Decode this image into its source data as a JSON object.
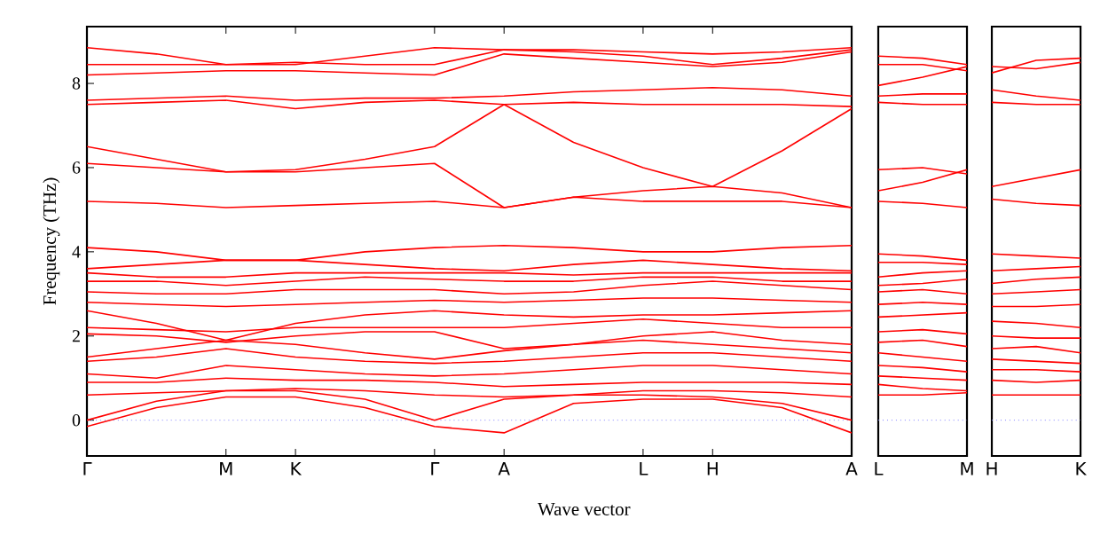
{
  "chart_data": [
    {
      "type": "line",
      "xlabel": "Wave vector",
      "ylabel": "Frequency (THz)",
      "ylim": [
        -0.85,
        9.35
      ],
      "categories": [
        "Γ",
        null,
        "M",
        "K",
        null,
        "Γ",
        "A",
        null,
        "L",
        "H",
        null,
        "A"
      ],
      "yticks": [
        0,
        2,
        4,
        6,
        8
      ],
      "marker": "none",
      "line_style": "solid",
      "ref_lines": [
        {
          "axis": "y",
          "value": 0,
          "color": "#8080ff",
          "line_style": "dotted"
        }
      ],
      "series": [
        {
          "color": "#ff0000",
          "values": [
            -0.15,
            0.3,
            0.55,
            0.55,
            0.3,
            -0.15,
            -0.3,
            0.4,
            0.5,
            0.5,
            0.3,
            -0.3
          ]
        },
        {
          "color": "#ff0000",
          "values": [
            0.0,
            0.45,
            0.7,
            0.7,
            0.5,
            0.0,
            0.5,
            0.6,
            0.6,
            0.55,
            0.4,
            0.0
          ]
        },
        {
          "color": "#ff0000",
          "values": [
            0.6,
            0.65,
            0.7,
            0.75,
            0.7,
            0.6,
            0.55,
            0.6,
            0.7,
            0.7,
            0.65,
            0.55
          ]
        },
        {
          "color": "#ff0000",
          "values": [
            0.9,
            0.9,
            1.0,
            0.95,
            0.95,
            0.9,
            0.8,
            0.85,
            0.9,
            0.9,
            0.9,
            0.85
          ]
        },
        {
          "color": "#ff0000",
          "values": [
            1.1,
            1.0,
            1.3,
            1.2,
            1.1,
            1.05,
            1.1,
            1.2,
            1.3,
            1.3,
            1.2,
            1.1
          ]
        },
        {
          "color": "#ff0000",
          "values": [
            1.4,
            1.5,
            1.7,
            1.5,
            1.4,
            1.35,
            1.4,
            1.5,
            1.6,
            1.6,
            1.5,
            1.4
          ]
        },
        {
          "color": "#ff0000",
          "values": [
            1.5,
            1.7,
            1.9,
            1.8,
            1.6,
            1.45,
            1.65,
            1.8,
            1.9,
            1.8,
            1.7,
            1.6
          ]
        },
        {
          "color": "#ff0000",
          "values": [
            2.05,
            2.0,
            1.85,
            2.0,
            2.1,
            2.1,
            1.7,
            1.8,
            2.0,
            2.1,
            1.9,
            1.8
          ]
        },
        {
          "color": "#ff0000",
          "values": [
            2.2,
            2.15,
            2.1,
            2.2,
            2.2,
            2.2,
            2.2,
            2.3,
            2.4,
            2.3,
            2.2,
            2.2
          ]
        },
        {
          "color": "#ff0000",
          "values": [
            2.6,
            2.3,
            1.9,
            2.3,
            2.5,
            2.6,
            2.5,
            2.45,
            2.5,
            2.5,
            2.55,
            2.6
          ]
        },
        {
          "color": "#ff0000",
          "values": [
            2.8,
            2.75,
            2.7,
            2.75,
            2.8,
            2.85,
            2.8,
            2.85,
            2.9,
            2.9,
            2.85,
            2.8
          ]
        },
        {
          "color": "#ff0000",
          "values": [
            3.05,
            3.0,
            3.0,
            3.1,
            3.1,
            3.1,
            3.0,
            3.05,
            3.2,
            3.3,
            3.2,
            3.1
          ]
        },
        {
          "color": "#ff0000",
          "values": [
            3.3,
            3.3,
            3.2,
            3.3,
            3.4,
            3.35,
            3.3,
            3.3,
            3.4,
            3.4,
            3.3,
            3.3
          ]
        },
        {
          "color": "#ff0000",
          "values": [
            3.5,
            3.4,
            3.4,
            3.5,
            3.5,
            3.5,
            3.5,
            3.45,
            3.5,
            3.5,
            3.5,
            3.5
          ]
        },
        {
          "color": "#ff0000",
          "values": [
            3.6,
            3.7,
            3.8,
            3.8,
            3.7,
            3.6,
            3.55,
            3.7,
            3.8,
            3.7,
            3.6,
            3.55
          ]
        },
        {
          "color": "#ff0000",
          "values": [
            4.1,
            4.0,
            3.8,
            3.8,
            4.0,
            4.1,
            4.15,
            4.1,
            4.0,
            4.0,
            4.1,
            4.15
          ]
        },
        {
          "color": "#ff0000",
          "values": [
            5.2,
            5.15,
            5.05,
            5.1,
            5.15,
            5.2,
            5.05,
            5.3,
            5.2,
            5.2,
            5.2,
            5.05
          ]
        },
        {
          "color": "#ff0000",
          "values": [
            6.1,
            6.0,
            5.9,
            5.9,
            6.0,
            6.1,
            5.05,
            5.3,
            5.45,
            5.55,
            5.4,
            5.05
          ]
        },
        {
          "color": "#ff0000",
          "values": [
            6.5,
            6.2,
            5.9,
            5.95,
            6.2,
            6.5,
            7.5,
            6.6,
            6.0,
            5.55,
            6.4,
            7.4
          ]
        },
        {
          "color": "#ff0000",
          "values": [
            7.5,
            7.55,
            7.6,
            7.4,
            7.55,
            7.6,
            7.5,
            7.55,
            7.5,
            7.5,
            7.5,
            7.45
          ]
        },
        {
          "color": "#ff0000",
          "values": [
            7.6,
            7.65,
            7.7,
            7.6,
            7.65,
            7.65,
            7.7,
            7.8,
            7.85,
            7.9,
            7.85,
            7.7
          ]
        },
        {
          "color": "#ff0000",
          "values": [
            8.2,
            8.25,
            8.3,
            8.3,
            8.25,
            8.2,
            8.7,
            8.6,
            8.5,
            8.4,
            8.5,
            8.75
          ]
        },
        {
          "color": "#ff0000",
          "values": [
            8.45,
            8.45,
            8.45,
            8.5,
            8.45,
            8.45,
            8.8,
            8.75,
            8.65,
            8.45,
            8.6,
            8.8
          ]
        },
        {
          "color": "#ff0000",
          "values": [
            8.85,
            8.7,
            8.45,
            8.45,
            8.65,
            8.85,
            8.8,
            8.8,
            8.75,
            8.7,
            8.75,
            8.85
          ]
        }
      ]
    },
    {
      "type": "line",
      "ylim": [
        -0.85,
        9.35
      ],
      "tick_labels": "x",
      "categories": [
        "L",
        null,
        "M"
      ],
      "marker": "none",
      "line_style": "solid",
      "ref_lines": [
        {
          "axis": "y",
          "value": 0,
          "color": "#8080ff",
          "line_style": "dotted"
        }
      ],
      "series": [
        {
          "color": "#ff0000",
          "values": [
            8.65,
            8.6,
            8.45
          ]
        },
        {
          "color": "#ff0000",
          "values": [
            8.45,
            8.45,
            8.3
          ]
        },
        {
          "color": "#ff0000",
          "values": [
            7.95,
            8.15,
            8.4
          ]
        },
        {
          "color": "#ff0000",
          "values": [
            7.7,
            7.75,
            7.75
          ]
        },
        {
          "color": "#ff0000",
          "values": [
            7.55,
            7.5,
            7.5
          ]
        },
        {
          "color": "#ff0000",
          "values": [
            5.95,
            6.0,
            5.85
          ]
        },
        {
          "color": "#ff0000",
          "values": [
            5.45,
            5.65,
            5.95
          ]
        },
        {
          "color": "#ff0000",
          "values": [
            5.2,
            5.15,
            5.05
          ]
        },
        {
          "color": "#ff0000",
          "values": [
            3.95,
            3.9,
            3.8
          ]
        },
        {
          "color": "#ff0000",
          "values": [
            3.75,
            3.75,
            3.7
          ]
        },
        {
          "color": "#ff0000",
          "values": [
            3.4,
            3.5,
            3.55
          ]
        },
        {
          "color": "#ff0000",
          "values": [
            3.2,
            3.25,
            3.35
          ]
        },
        {
          "color": "#ff0000",
          "values": [
            3.05,
            3.1,
            3.0
          ]
        },
        {
          "color": "#ff0000",
          "values": [
            2.75,
            2.8,
            2.75
          ]
        },
        {
          "color": "#ff0000",
          "values": [
            2.45,
            2.5,
            2.55
          ]
        },
        {
          "color": "#ff0000",
          "values": [
            2.1,
            2.15,
            2.05
          ]
        },
        {
          "color": "#ff0000",
          "values": [
            1.85,
            1.9,
            1.75
          ]
        },
        {
          "color": "#ff0000",
          "values": [
            1.6,
            1.5,
            1.4
          ]
        },
        {
          "color": "#ff0000",
          "values": [
            1.3,
            1.25,
            1.15
          ]
        },
        {
          "color": "#ff0000",
          "values": [
            1.05,
            1.0,
            0.95
          ]
        },
        {
          "color": "#ff0000",
          "values": [
            0.85,
            0.75,
            0.7
          ]
        },
        {
          "color": "#ff0000",
          "values": [
            0.6,
            0.6,
            0.65
          ]
        }
      ]
    },
    {
      "type": "line",
      "ylim": [
        -0.85,
        9.35
      ],
      "tick_labels": "x",
      "categories": [
        "H",
        null,
        "K"
      ],
      "marker": "none",
      "line_style": "solid",
      "ref_lines": [
        {
          "axis": "y",
          "value": 0,
          "color": "#8080ff",
          "line_style": "dotted"
        }
      ],
      "series": [
        {
          "color": "#ff0000",
          "values": [
            8.4,
            8.35,
            8.5
          ]
        },
        {
          "color": "#ff0000",
          "values": [
            8.25,
            8.55,
            8.6
          ]
        },
        {
          "color": "#ff0000",
          "values": [
            7.85,
            7.7,
            7.6
          ]
        },
        {
          "color": "#ff0000",
          "values": [
            7.55,
            7.5,
            7.5
          ]
        },
        {
          "color": "#ff0000",
          "values": [
            5.55,
            5.75,
            5.95
          ]
        },
        {
          "color": "#ff0000",
          "values": [
            5.25,
            5.15,
            5.1
          ]
        },
        {
          "color": "#ff0000",
          "values": [
            3.95,
            3.9,
            3.85
          ]
        },
        {
          "color": "#ff0000",
          "values": [
            3.55,
            3.6,
            3.65
          ]
        },
        {
          "color": "#ff0000",
          "values": [
            3.25,
            3.35,
            3.4
          ]
        },
        {
          "color": "#ff0000",
          "values": [
            3.0,
            3.05,
            3.1
          ]
        },
        {
          "color": "#ff0000",
          "values": [
            2.7,
            2.7,
            2.75
          ]
        },
        {
          "color": "#ff0000",
          "values": [
            2.35,
            2.3,
            2.2
          ]
        },
        {
          "color": "#ff0000",
          "values": [
            2.0,
            1.95,
            1.95
          ]
        },
        {
          "color": "#ff0000",
          "values": [
            1.7,
            1.75,
            1.6
          ]
        },
        {
          "color": "#ff0000",
          "values": [
            1.45,
            1.4,
            1.35
          ]
        },
        {
          "color": "#ff0000",
          "values": [
            1.2,
            1.2,
            1.15
          ]
        },
        {
          "color": "#ff0000",
          "values": [
            0.95,
            0.9,
            0.95
          ]
        },
        {
          "color": "#ff0000",
          "values": [
            0.6,
            0.6,
            0.6
          ]
        }
      ]
    }
  ]
}
